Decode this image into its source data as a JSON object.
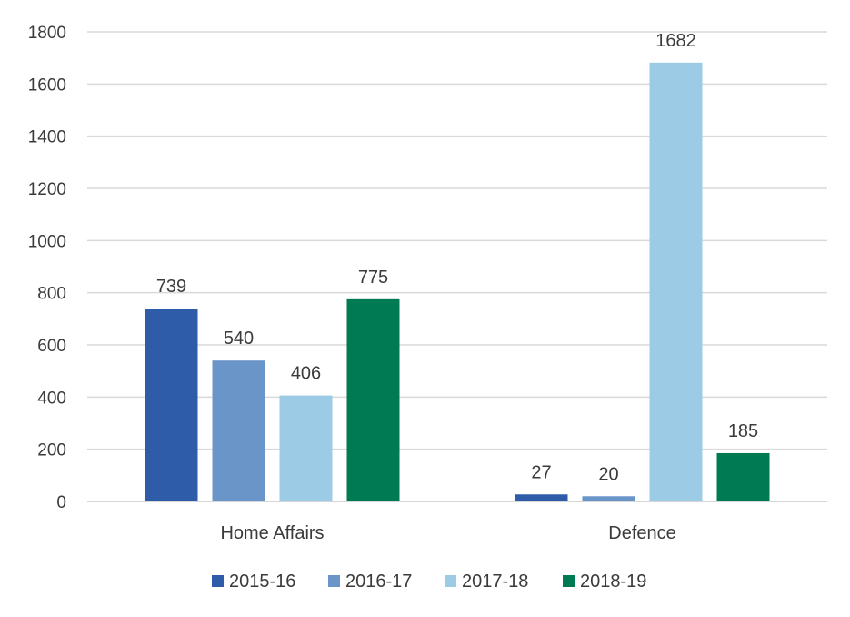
{
  "chart_data": {
    "type": "bar",
    "categories": [
      "Home Affairs",
      "Defence"
    ],
    "series": [
      {
        "name": "2015-16",
        "values": [
          739,
          27
        ],
        "color": "#2e5ca8"
      },
      {
        "name": "2016-17",
        "values": [
          540,
          20
        ],
        "color": "#6a95c9"
      },
      {
        "name": "2017-18",
        "values": [
          406,
          1682
        ],
        "color": "#9ccbe6"
      },
      {
        "name": "2018-19",
        "values": [
          775,
          185
        ],
        "color": "#007a53"
      }
    ],
    "ylim": [
      0,
      1800
    ],
    "yticks": [
      0,
      200,
      400,
      600,
      800,
      1000,
      1200,
      1400,
      1600,
      1800
    ],
    "grid": true,
    "legend": "bottom",
    "data_labels": true
  }
}
